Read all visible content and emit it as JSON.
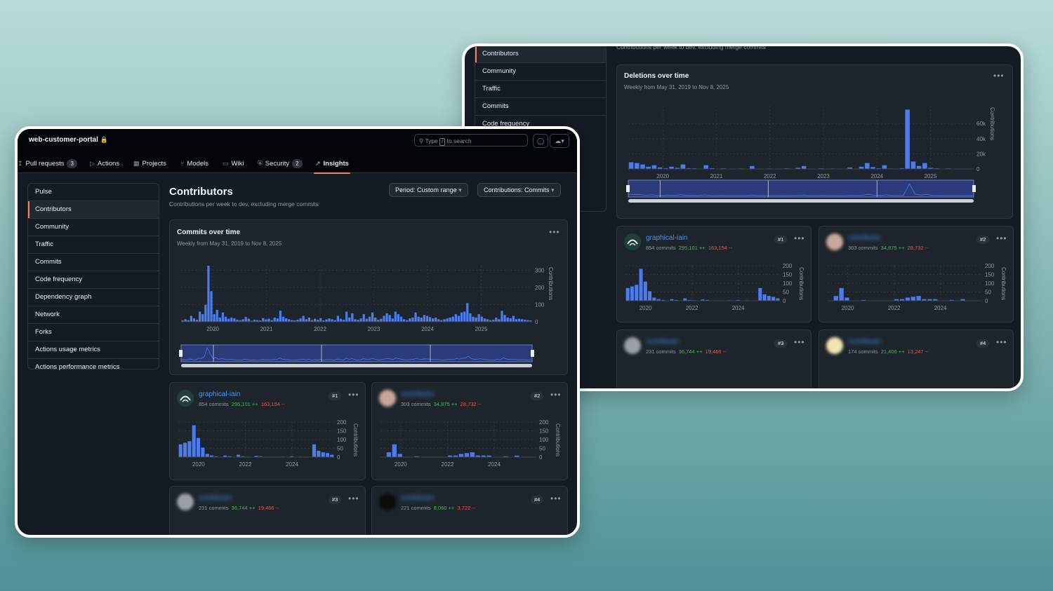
{
  "front": {
    "repo_name": "web-customer-portal",
    "search_placeholder_pre": "Type",
    "search_key": "/",
    "search_placeholder_post": "to search",
    "tabs": [
      {
        "label": "Pull requests",
        "count": "3",
        "icon": "pull-request-icon"
      },
      {
        "label": "Actions",
        "icon": "play-icon"
      },
      {
        "label": "Projects",
        "icon": "table-icon"
      },
      {
        "label": "Models",
        "icon": "models-icon"
      },
      {
        "label": "Wiki",
        "icon": "book-icon"
      },
      {
        "label": "Security",
        "count": "2",
        "icon": "shield-icon"
      },
      {
        "label": "Insights",
        "icon": "graph-icon",
        "active": true
      }
    ],
    "sidebar": [
      "Pulse",
      "Contributors",
      "Community",
      "Traffic",
      "Commits",
      "Code frequency",
      "Dependency graph",
      "Network",
      "Forks",
      "Actions usage metrics",
      "Actions performance metrics"
    ],
    "page_title": "Contributors",
    "page_subtitle": "Contributions per week to dev, excluding merge commits",
    "period_label": "Period: Custom range",
    "contrib_label": "Contributions: Commits",
    "chart_title": "Commits over time",
    "chart_subtitle": "Weekly from May 31, 2019 to Nov 8, 2025",
    "y_axis_label": "Contributions",
    "contributors": [
      {
        "name": "graphical-iain",
        "commits": "854 commits",
        "additions": "295,101 ++",
        "deletions": "163,154 --",
        "rank": "#1"
      },
      {
        "name": "contributor",
        "commits": "303 commits",
        "additions": "34,875 ++",
        "deletions": "28,732 --",
        "rank": "#2"
      },
      {
        "name": "contributor",
        "commits": "231 commits",
        "additions": "36,744 ++",
        "deletions": "19,466 --",
        "rank": "#3"
      },
      {
        "name": "contributor",
        "commits": "221 commits",
        "additions": "8,060 ++",
        "deletions": "3,722 --",
        "rank": "#4"
      }
    ]
  },
  "back": {
    "sidebar": [
      "Contributors",
      "Community",
      "Traffic",
      "Commits",
      "Code frequency"
    ],
    "cut_subtitle": "Contributions per week to dev, excluding merge commits",
    "chart_title": "Deletions over time",
    "chart_subtitle": "Weekly from May 31, 2019 to Nov 8, 2025",
    "y_axis_label": "Contributions",
    "contributors": [
      {
        "name": "graphical-iain",
        "commits": "854 commits",
        "additions": "295,101 ++",
        "deletions": "163,154 --",
        "rank": "#1"
      },
      {
        "name": "contributor",
        "commits": "303 commits",
        "additions": "34,875 ++",
        "deletions": "28,732 --",
        "rank": "#2"
      },
      {
        "name": "contributor",
        "commits": "231 commits",
        "additions": "36,744 ++",
        "deletions": "19,466 --",
        "rank": "#3"
      },
      {
        "name": "contributor",
        "commits": "174 commits",
        "additions": "21,406 ++",
        "deletions": "13,247 --",
        "rank": "#4"
      }
    ]
  },
  "chart_data": [
    {
      "type": "bar",
      "title": "Commits over time",
      "x_ticks": [
        "2020",
        "2021",
        "2022",
        "2023",
        "2024",
        "2025"
      ],
      "y_ticks": [
        "0",
        "100",
        "200",
        "300"
      ],
      "ylim": [
        0,
        330
      ],
      "ylabel": "Contributions",
      "values": [
        8,
        15,
        10,
        35,
        20,
        12,
        60,
        45,
        100,
        330,
        180,
        45,
        70,
        25,
        55,
        30,
        18,
        25,
        20,
        12,
        10,
        15,
        28,
        18,
        6,
        12,
        10,
        8,
        22,
        14,
        18,
        10,
        25,
        20,
        65,
        30,
        20,
        15,
        10,
        8,
        12,
        20,
        35,
        15,
        25,
        10,
        18,
        12,
        22,
        8,
        14,
        20,
        15,
        10,
        35,
        18,
        12,
        60,
        25,
        50,
        15,
        12,
        20,
        45,
        18,
        30,
        55,
        25,
        12,
        18,
        35,
        50,
        40,
        20,
        60,
        45,
        30,
        15,
        10,
        20,
        25,
        55,
        30,
        25,
        40,
        35,
        28,
        20,
        25,
        15,
        10,
        15,
        20,
        25,
        30,
        45,
        35,
        55,
        60,
        110,
        50,
        30,
        25,
        45,
        30,
        20,
        15,
        10,
        12,
        25,
        15,
        65,
        40,
        25,
        20,
        35,
        15,
        18,
        15,
        12,
        10,
        8
      ],
      "color": "#4b7bec"
    },
    {
      "type": "bar",
      "title": "Deletions over time",
      "x_ticks": [
        "2020",
        "2021",
        "2022",
        "2023",
        "2024",
        "2025"
      ],
      "y_ticks": [
        "0",
        "20k",
        "40k",
        "60k"
      ],
      "ylim": [
        0,
        85000
      ],
      "ylabel": "Contributions",
      "values": [
        9000,
        8000,
        6000,
        3000,
        5000,
        2000,
        1000,
        3000,
        1500,
        6000,
        1000,
        800,
        500,
        5000,
        1000,
        500,
        800,
        400,
        300,
        600,
        200,
        4000,
        500,
        300,
        600,
        400,
        200,
        800,
        300,
        1500,
        4000,
        200,
        300,
        800,
        400,
        600,
        200,
        300,
        2000,
        400,
        3000,
        8000,
        2500,
        1000,
        5000,
        600,
        500,
        1000,
        80000,
        10000,
        4000,
        8000,
        1500,
        800,
        400,
        700,
        300,
        200,
        500,
        300
      ],
      "color": "#4b7bec"
    },
    {
      "type": "bar",
      "title": "graphical-iain commits",
      "x_ticks": [
        "2020",
        "2022",
        "2024"
      ],
      "y_ticks": [
        "0",
        "50",
        "100",
        "150",
        "200"
      ],
      "ylim": [
        0,
        220
      ],
      "values": [
        80,
        90,
        100,
        200,
        120,
        60,
        20,
        10,
        5,
        0,
        10,
        5,
        0,
        15,
        5,
        3,
        0,
        8,
        5,
        0,
        0,
        0,
        0,
        3,
        0,
        5,
        0,
        3,
        2,
        0,
        80,
        40,
        30,
        25,
        15
      ],
      "color": "#4b7bec"
    },
    {
      "type": "bar",
      "title": "contributor #2 commits",
      "x_ticks": [
        "2020",
        "2022",
        "2024"
      ],
      "y_ticks": [
        "0",
        "50",
        "100",
        "150",
        "200"
      ],
      "ylim": [
        0,
        220
      ],
      "values": [
        0,
        30,
        80,
        20,
        0,
        0,
        5,
        0,
        0,
        0,
        0,
        0,
        10,
        10,
        20,
        25,
        30,
        10,
        10,
        10,
        0,
        0,
        5,
        0,
        10,
        0,
        0,
        0
      ],
      "color": "#4b7bec"
    }
  ]
}
